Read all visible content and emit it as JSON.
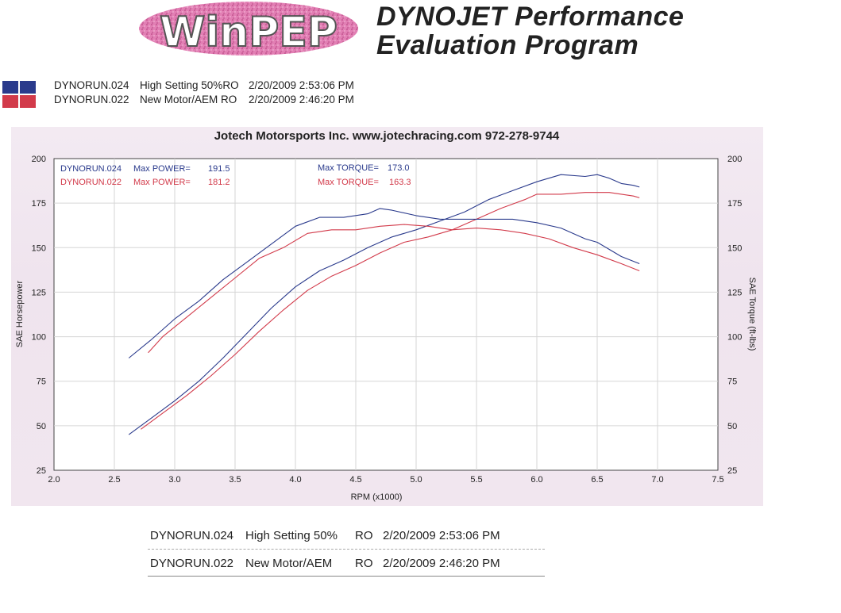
{
  "header": {
    "logo_text": "WinPEP",
    "title_line1": "DYNOJET Performance",
    "title_line2": "Evaluation Program"
  },
  "runs_top": [
    {
      "id": "DYNORUN.024",
      "desc": "High Setting 50%RO",
      "date": "2/20/2009 2:53:06 PM",
      "color": "#2a3a8c"
    },
    {
      "id": "DYNORUN.022",
      "desc": "New Motor/AEM  RO",
      "date": "2/20/2009 2:46:20 PM",
      "color": "#d23a4a"
    }
  ],
  "runs_bottom": [
    {
      "id": "DYNORUN.024",
      "desc": "High Setting 50%",
      "ro": "RO",
      "date": "2/20/2009 2:53:06 PM"
    },
    {
      "id": "DYNORUN.022",
      "desc": "New Motor/AEM",
      "ro": "RO",
      "date": "2/20/2009 2:46:20 PM"
    }
  ],
  "chart_data": {
    "type": "line",
    "title": "Jotech Motorsports Inc. www.jotechracing.com   972-278-9744",
    "xlabel": "RPM (x1000)",
    "ylabel": "SAE Horsepower",
    "y2label": "SAE Torque (ft-lbs)",
    "xlim": [
      2.0,
      7.5
    ],
    "ylim": [
      25,
      200
    ],
    "x_ticks": [
      "2.0",
      "2.5",
      "3.0",
      "3.5",
      "4.0",
      "4.5",
      "5.0",
      "5.5",
      "6.0",
      "6.5",
      "7.0",
      "7.5"
    ],
    "y_ticks": [
      "25",
      "50",
      "75",
      "100",
      "125",
      "150",
      "175",
      "200"
    ],
    "grid": true,
    "annotations": [
      {
        "run": "DYNORUN.024",
        "power_label": "Max POWER=",
        "power": "191.5",
        "torque_label": "Max TORQUE=",
        "torque": "173.0",
        "color": "#2a3a8c"
      },
      {
        "run": "DYNORUN.022",
        "power_label": "Max POWER=",
        "power": "181.2",
        "torque_label": "Max TORQUE=",
        "torque": "163.3",
        "color": "#d23a4a"
      }
    ],
    "series": [
      {
        "name": "DYNORUN.024",
        "metric": "power",
        "color": "#2a3a8c",
        "x": [
          2.62,
          2.8,
          3.0,
          3.2,
          3.4,
          3.6,
          3.8,
          4.0,
          4.2,
          4.4,
          4.6,
          4.8,
          5.0,
          5.2,
          5.4,
          5.6,
          5.8,
          6.0,
          6.2,
          6.4,
          6.5,
          6.6,
          6.7,
          6.8,
          6.85
        ],
        "y": [
          45,
          54,
          64,
          75,
          88,
          102,
          116,
          128,
          137,
          143,
          150,
          156,
          160,
          165,
          170,
          177,
          182,
          187,
          191,
          190,
          191,
          189,
          186,
          185,
          184
        ]
      },
      {
        "name": "DYNORUN.022",
        "metric": "power",
        "color": "#d23a4a",
        "x": [
          2.72,
          2.9,
          3.1,
          3.3,
          3.5,
          3.7,
          3.9,
          4.1,
          4.3,
          4.5,
          4.7,
          4.9,
          5.1,
          5.3,
          5.5,
          5.7,
          5.9,
          6.0,
          6.2,
          6.4,
          6.6,
          6.8,
          6.85
        ],
        "y": [
          48,
          57,
          67,
          78,
          90,
          103,
          115,
          126,
          134,
          140,
          147,
          153,
          156,
          160,
          166,
          172,
          177,
          180,
          180,
          181,
          181,
          179,
          178
        ]
      },
      {
        "name": "DYNORUN.024",
        "metric": "torque",
        "color": "#2a3a8c",
        "x": [
          2.62,
          2.8,
          3.0,
          3.2,
          3.4,
          3.6,
          3.8,
          4.0,
          4.2,
          4.4,
          4.6,
          4.7,
          4.8,
          5.0,
          5.2,
          5.4,
          5.6,
          5.8,
          6.0,
          6.2,
          6.4,
          6.5,
          6.6,
          6.7,
          6.85
        ],
        "y": [
          88,
          98,
          110,
          120,
          132,
          142,
          152,
          162,
          167,
          167,
          169,
          172,
          171,
          168,
          166,
          166,
          166,
          166,
          164,
          161,
          155,
          153,
          149,
          145,
          141
        ]
      },
      {
        "name": "DYNORUN.022",
        "metric": "torque",
        "color": "#d23a4a",
        "x": [
          2.78,
          2.9,
          3.1,
          3.3,
          3.5,
          3.7,
          3.9,
          4.1,
          4.3,
          4.5,
          4.7,
          4.9,
          5.1,
          5.3,
          5.5,
          5.7,
          5.9,
          6.1,
          6.3,
          6.5,
          6.7,
          6.85
        ],
        "y": [
          91,
          100,
          111,
          122,
          133,
          144,
          150,
          158,
          160,
          160,
          162,
          163,
          162,
          160,
          161,
          160,
          158,
          155,
          150,
          146,
          141,
          137
        ]
      }
    ]
  }
}
